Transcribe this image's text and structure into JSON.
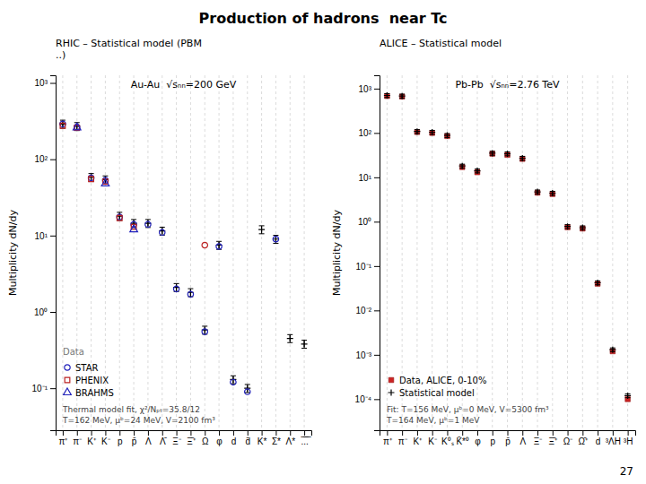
{
  "title": "Production of hadrons  near Tc",
  "annotations": [
    "27"
  ],
  "chart_data": [
    {
      "type": "scatter",
      "title": "Au-Au  √sₙₙ=200 GeV",
      "subtitle": "RHIC – Statistical model (PBM\n..)",
      "ylabel": "Multiplicity dN/dy",
      "categories": [
        "π⁺",
        "π⁻",
        "K⁺",
        "K⁻",
        "p",
        "p̄",
        "Λ",
        "Λ̄",
        "Ξ⁻",
        "Ξ̄⁺",
        "Ω",
        "φ",
        "d",
        "d̄",
        "K*",
        "Σ*",
        "Λ*",
        ".̅.̅.̅"
      ],
      "log": "y",
      "ylim": [
        0.028183829312644536,
        1258.9254117941675
      ],
      "yticks": [
        {
          "value": 0.1,
          "label": "10⁻¹"
        },
        {
          "value": 1,
          "label": "10⁰"
        },
        {
          "value": 10,
          "label": "10¹"
        },
        {
          "value": 100,
          "label": "10²"
        },
        {
          "value": 1000,
          "label": "10³"
        }
      ],
      "grid": "x",
      "legend": "lower left",
      "series": [
        {
          "color": "black",
          "marker": "plus",
          "values": [
            290,
            270,
            58,
            54,
            18,
            14.5,
            14.5,
            11.5,
            2.1,
            1.8,
            0.58,
            7.5,
            0.13,
            0.1,
            12,
            9,
            0.45,
            0.38
          ],
          "errors": [
            34.8,
            32.4,
            6.96,
            6.48,
            2.16,
            1.74,
            1.74,
            1.38,
            0.252,
            0.216,
            0.0696,
            0.9,
            0.0156,
            0.012,
            1.44,
            1.08,
            0.054,
            0.0456
          ]
        },
        {
          "name": "STAR",
          "color": "#2222bb",
          "marker": "circle-open",
          "values": [
            290,
            265,
            57,
            53,
            17.5,
            14,
            14,
            11,
            2.0,
            1.7,
            0.55,
            7.2,
            0.12,
            0.09,
            null,
            9,
            null,
            null
          ]
        },
        {
          "name": "PHENIX",
          "color": "#bb2222",
          "marker": "square-open",
          "values": [
            275,
            258,
            55,
            51,
            17,
            13,
            null,
            null,
            null,
            null,
            null,
            null,
            null,
            null,
            null,
            null,
            null,
            null
          ]
        },
        {
          "name": "BRAHMS",
          "color": "#2222bb",
          "marker": "triangle-open",
          "values": [
            null,
            260,
            null,
            48,
            null,
            12,
            null,
            null,
            null,
            null,
            null,
            null,
            null,
            null,
            null,
            null,
            null,
            null
          ]
        },
        {
          "color": "#bb2222",
          "marker": "circle-open",
          "values": [
            null,
            null,
            null,
            null,
            null,
            null,
            null,
            null,
            null,
            null,
            7.5,
            null,
            null,
            null,
            null,
            null,
            null,
            null
          ]
        }
      ],
      "annotations": [
        "Data",
        "Thermal model fit, χ²/Nₚₜ=35.8/12\nT=162 MeV, μᵇ=24 MeV, V=2100 fm³"
      ]
    },
    {
      "type": "scatter",
      "title": "Pb-Pb  √sₙₙ=2.76 TeV",
      "subtitle": "ALICE – Statistical model",
      "ylabel": "Multiplicity dN/dy",
      "categories": [
        "π⁺",
        "π⁻",
        "K⁺",
        "K⁻",
        "K⁰ₛ",
        "K̄*⁰",
        "φ",
        "p",
        "p̄",
        "Λ",
        "Ξ⁻",
        "Ξ̄⁺",
        "Ω⁻",
        "Ω̄⁺",
        "d",
        "³ΛH",
        "³H"
      ],
      "log": "y",
      "ylim": [
        1.9952623149688786e-05,
        1995.2623149688789
      ],
      "yticks": [
        {
          "value": 0.0001,
          "label": "10⁻⁴"
        },
        {
          "value": 0.001,
          "label": "10⁻³"
        },
        {
          "value": 0.01,
          "label": "10⁻²"
        },
        {
          "value": 0.1,
          "label": "10⁻¹"
        },
        {
          "value": 1,
          "label": "10⁰"
        },
        {
          "value": 10,
          "label": "10¹"
        },
        {
          "value": 100,
          "label": "10²"
        },
        {
          "value": 1000,
          "label": "10³"
        }
      ],
      "grid": "x",
      "legend": "lower left",
      "series": [
        {
          "name": "Data, ALICE, 0-10%",
          "color": "#cc2222",
          "marker": "square",
          "values": [
            680,
            660,
            105,
            100,
            85,
            17,
            13,
            34,
            32,
            26,
            4.5,
            4.2,
            0.75,
            0.7,
            0.04,
            0.0012,
            0.0001
          ]
        },
        {
          "name": "Statistical model",
          "color": "black",
          "marker": "plus",
          "values": [
            700,
            680,
            108,
            104,
            88,
            18,
            14,
            35,
            34,
            27,
            4.7,
            4.4,
            0.78,
            0.73,
            0.042,
            0.0013,
            0.00012
          ],
          "errors": [
            70,
            68,
            10.8,
            10.4,
            8.8,
            1.8,
            1.4,
            3.5,
            3.4,
            2.7,
            0.47,
            0.44,
            0.078,
            0.073,
            0.0042,
            0.00013,
            1.2e-05
          ]
        }
      ],
      "annotations": [
        "Fit: T=156 MeV, μᵇ=0 MeV, V=5300 fm³\nT=164 MeV, μᵇ=1 MeV"
      ]
    }
  ]
}
